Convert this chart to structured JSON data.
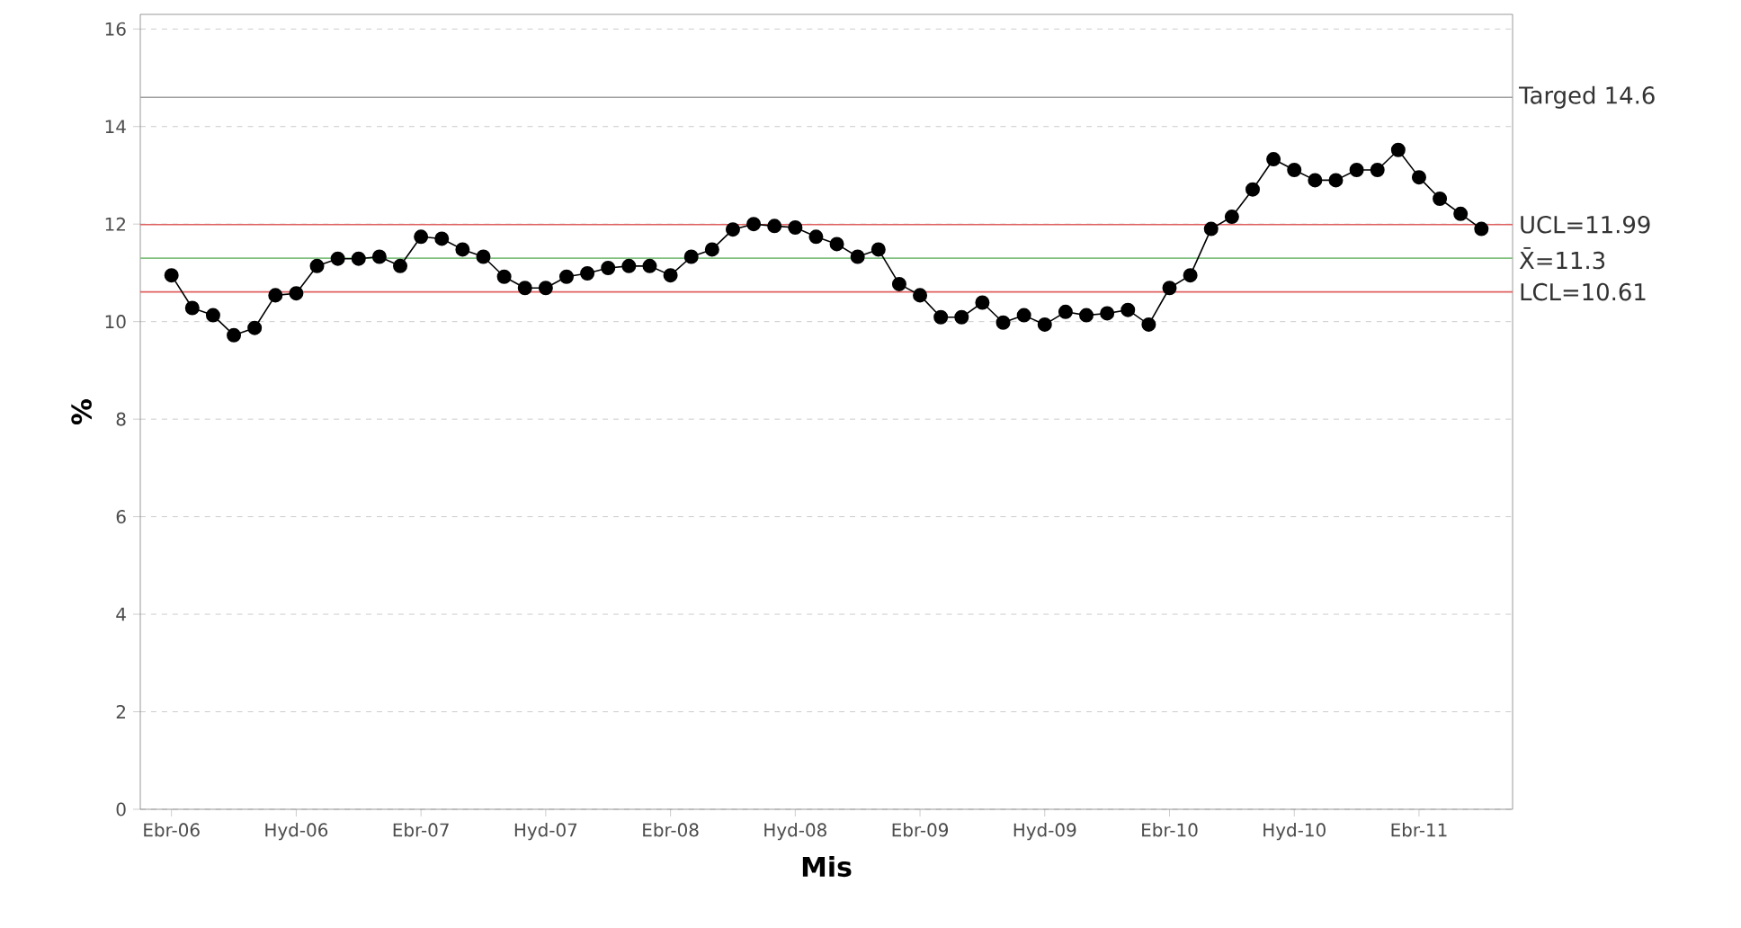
{
  "chart_data": {
    "type": "line",
    "xlabel": "Mis",
    "ylabel": "%",
    "categories": [
      "Ebr-06",
      null,
      null,
      null,
      null,
      null,
      "Hyd-06",
      null,
      null,
      null,
      null,
      null,
      "Ebr-07",
      null,
      null,
      null,
      null,
      null,
      "Hyd-07",
      null,
      null,
      null,
      null,
      null,
      "Ebr-08",
      null,
      null,
      null,
      null,
      null,
      "Hyd-08",
      null,
      null,
      null,
      null,
      null,
      "Ebr-09",
      null,
      null,
      null,
      null,
      null,
      "Hyd-09",
      null,
      null,
      null,
      null,
      null,
      "Ebr-10",
      null,
      null,
      null,
      null,
      null,
      "Hyd-10",
      null,
      null,
      null,
      null,
      null,
      "Ebr-11",
      null,
      null,
      null
    ],
    "series": [
      {
        "color": "#000000",
        "values": [
          10.95,
          10.28,
          10.13,
          9.72,
          9.87,
          10.54,
          10.58,
          11.14,
          11.29,
          11.29,
          11.33,
          11.14,
          11.74,
          11.7,
          11.48,
          11.33,
          10.92,
          10.69,
          10.69,
          10.92,
          10.99,
          11.1,
          11.14,
          11.14,
          10.95,
          11.33,
          11.48,
          11.89,
          12.0,
          11.96,
          11.93,
          11.74,
          11.59,
          11.33,
          11.48,
          10.77,
          10.54,
          10.09,
          10.09,
          10.39,
          9.98,
          10.13,
          9.94,
          10.2,
          10.13,
          10.17,
          10.24,
          9.94,
          10.69,
          10.95,
          11.9,
          12.15,
          12.71,
          13.33,
          13.11,
          12.9,
          12.9,
          13.11,
          13.11,
          13.52,
          12.96,
          12.52,
          12.21,
          11.9
        ]
      }
    ],
    "ylim": [
      0,
      16.3
    ],
    "yticks": [
      0,
      2,
      4,
      6,
      8,
      10,
      12,
      14,
      16
    ],
    "ref_lines": [
      {
        "axis": "y",
        "value": 14.6,
        "label": "Targed 14.6",
        "color": "#a0a0a0"
      },
      {
        "axis": "y",
        "value": 11.99,
        "label": "UCL=11.99",
        "color": "#e06060"
      },
      {
        "axis": "y",
        "value": 11.3,
        "label": "X̄=11.3",
        "color": "#80c080"
      },
      {
        "axis": "y",
        "value": 10.61,
        "label": "LCL=10.61",
        "color": "#e06060"
      }
    ],
    "grid": "y",
    "marker": "circle",
    "line_style": "solid"
  }
}
